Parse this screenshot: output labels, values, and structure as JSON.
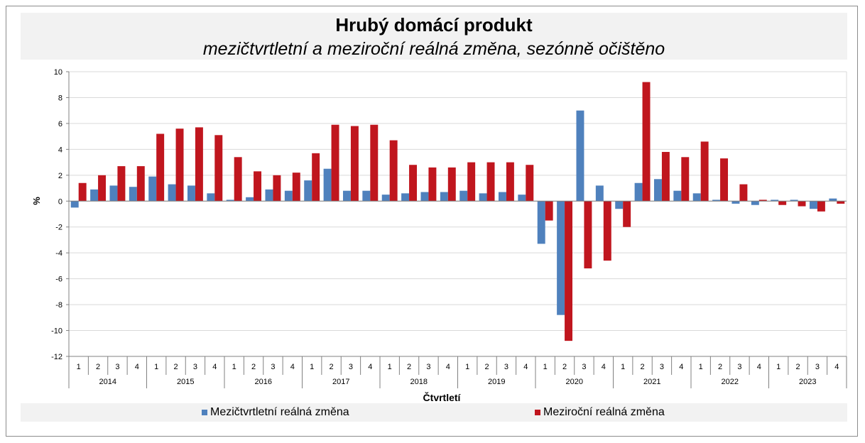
{
  "chart_data": {
    "type": "bar",
    "title": "Hrubý domácí produkt",
    "subtitle": "mezičtvrtletní a meziroční reálná změna, sezónně očištěno",
    "ylabel": "%",
    "xlabel": "Čtvrtletí",
    "ylim": [
      -12,
      10
    ],
    "yticks": [
      10,
      8,
      6,
      4,
      2,
      0,
      -2,
      -4,
      -6,
      -8,
      -10,
      -12
    ],
    "grid": true,
    "legend_position": "bottom",
    "years": [
      "2014",
      "2015",
      "2016",
      "2017",
      "2018",
      "2019",
      "2020",
      "2021",
      "2022",
      "2023"
    ],
    "quarters": [
      "1",
      "2",
      "3",
      "4"
    ],
    "series": [
      {
        "name": "Mezičtvrtletní reálná změna",
        "color": "#4f81bd",
        "values": [
          -0.5,
          0.9,
          1.2,
          1.1,
          1.9,
          1.3,
          1.2,
          0.6,
          0.1,
          0.3,
          0.9,
          0.8,
          1.6,
          2.5,
          0.8,
          0.8,
          0.5,
          0.6,
          0.7,
          0.7,
          0.8,
          0.6,
          0.7,
          0.5,
          -3.3,
          -8.8,
          7.0,
          1.2,
          -0.6,
          1.4,
          1.7,
          0.8,
          0.6,
          0.1,
          -0.2,
          -0.3,
          0.1,
          0.1,
          -0.6,
          0.2
        ]
      },
      {
        "name": "Meziroční reálná změna",
        "color": "#c0161e",
        "values": [
          1.4,
          2.0,
          2.7,
          2.7,
          5.2,
          5.6,
          5.7,
          5.1,
          3.4,
          2.3,
          2.0,
          2.2,
          3.7,
          5.9,
          5.8,
          5.9,
          4.7,
          2.8,
          2.6,
          2.6,
          3.0,
          3.0,
          3.0,
          2.8,
          -1.5,
          -10.8,
          -5.2,
          -4.6,
          -2.0,
          9.2,
          3.8,
          3.4,
          4.6,
          3.3,
          1.3,
          0.1,
          -0.3,
          -0.4,
          -0.8,
          -0.2
        ]
      }
    ]
  }
}
